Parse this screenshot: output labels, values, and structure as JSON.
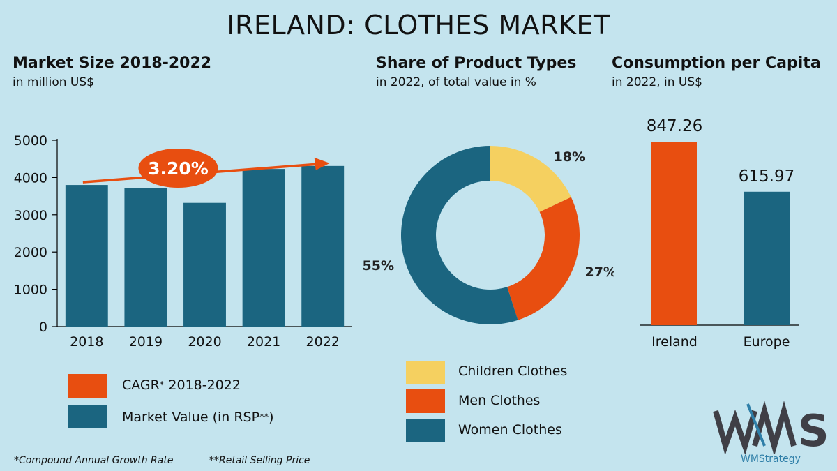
{
  "title": "IRELAND: CLOTHES MARKET",
  "colors": {
    "background": "#c4e4ee",
    "teal": "#1b6580",
    "orange": "#e84e10",
    "yellow": "#f5d060"
  },
  "sections": {
    "market": {
      "title": "Market Size 2018-2022",
      "subtitle": "in million US$"
    },
    "share": {
      "title": "Share of Product Types",
      "subtitle": "in 2022, of total value in %"
    },
    "capita": {
      "title": "Consumption per Capita",
      "subtitle": "in 2022, in US$"
    }
  },
  "legend_market": {
    "cagr_label": "CAGR",
    "cagr_mark": "*",
    "cagr_period": " 2018-2022",
    "value_label": "Market Value (in RSP",
    "value_mark": "**",
    "value_close": ")"
  },
  "legend_share": {
    "children": "Children Clothes",
    "men": "Men Clothes",
    "women": "Women Clothes"
  },
  "footnotes": {
    "cagr": "*Compound Annual Growth Rate",
    "rsp": "**Retail Selling Price"
  },
  "logo": {
    "mark": "WMS",
    "name": "WMStrategy"
  },
  "chart_data": [
    {
      "type": "bar",
      "title": "Market Size 2018-2022",
      "subtitle": "in million US$",
      "categories": [
        "2018",
        "2019",
        "2020",
        "2021",
        "2022"
      ],
      "values": [
        3800,
        3710,
        3320,
        4230,
        4310
      ],
      "ylim": [
        0,
        5000
      ],
      "yticks": [
        0,
        1000,
        2000,
        3000,
        4000,
        5000
      ],
      "annotation": {
        "label": "3.20%",
        "meaning": "CAGR 2018-2022"
      },
      "grid": false
    },
    {
      "type": "pie",
      "title": "Share of Product Types",
      "subtitle": "in 2022, of total value in %",
      "labels": [
        "Children Clothes",
        "Men Clothes",
        "Women Clothes"
      ],
      "values": [
        18,
        27,
        55
      ],
      "value_labels": [
        "18%",
        "27%",
        "55%"
      ],
      "donut": true
    },
    {
      "type": "bar",
      "title": "Consumption per Capita",
      "subtitle": "in 2022, in US$",
      "categories": [
        "Ireland",
        "Europe"
      ],
      "values": [
        847.26,
        615.97
      ],
      "value_labels": [
        "847.26",
        "615.97"
      ]
    }
  ]
}
